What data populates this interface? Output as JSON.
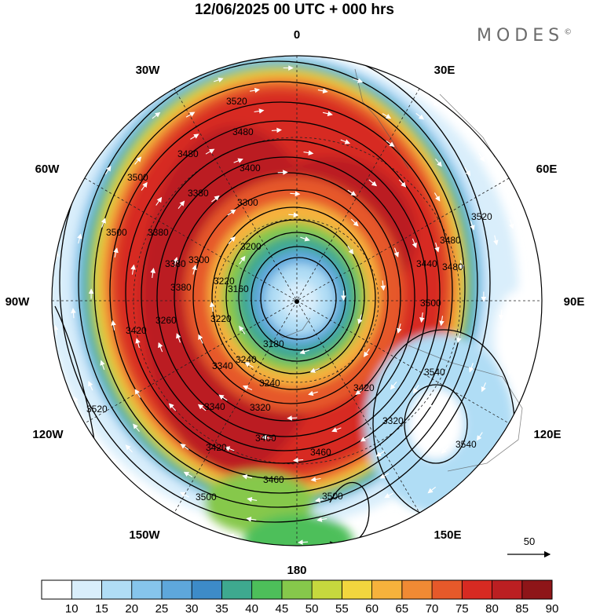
{
  "title": "12/06/2025  00 UTC  + 000 hrs",
  "brand": "MODES",
  "brand_mark": "©",
  "longitude_labels": {
    "0": "0",
    "30E": "30E",
    "60E": "60E",
    "90E": "90E",
    "120E": "120E",
    "150E": "150E",
    "180": "180",
    "150W": "150W",
    "120W": "120W",
    "90W": "90W",
    "60W": "60W",
    "30W": "30W"
  },
  "contour_labels": [
    "3520",
    "3480",
    "3500",
    "3480",
    "3400",
    "3380",
    "3300",
    "3200",
    "3160",
    "3180",
    "3220",
    "3260",
    "3240",
    "3300",
    "3320",
    "3340",
    "3380",
    "3420",
    "3400",
    "3460",
    "3500",
    "3480",
    "3500",
    "3540",
    "3540",
    "3420",
    "3380",
    "3500",
    "3440",
    "3420",
    "3460",
    "3520",
    "3520",
    "3480",
    "3380",
    "3240",
    "3220",
    "3320",
    "3340",
    "3500"
  ],
  "reference_vector": {
    "label": "50"
  },
  "colorbar": {
    "ticks": [
      "10",
      "15",
      "20",
      "25",
      "30",
      "35",
      "40",
      "45",
      "50",
      "55",
      "60",
      "65",
      "70",
      "75",
      "80",
      "85",
      "90"
    ],
    "colors": [
      "#ffffff",
      "#d9eefb",
      "#b0ddf5",
      "#86c5ec",
      "#5ea7db",
      "#3d8bc8",
      "#3ea98f",
      "#4dbf5a",
      "#86c84b",
      "#c6d83e",
      "#f2d63e",
      "#f6b23c",
      "#f08a34",
      "#e6592a",
      "#d72a22",
      "#bb1f22",
      "#8e1518"
    ]
  },
  "chart_data": {
    "type": "polar-stereographic map",
    "projection": "southern hemisphere polar stereographic",
    "fields": [
      "wind speed (shaded)",
      "geopotential height contours",
      "wind vectors"
    ],
    "contour_values": [
      3160,
      3180,
      3200,
      3220,
      3240,
      3260,
      3300,
      3320,
      3340,
      3380,
      3400,
      3420,
      3440,
      3460,
      3480,
      3500,
      3520,
      3540
    ],
    "shade_levels": [
      10,
      15,
      20,
      25,
      30,
      35,
      40,
      45,
      50,
      55,
      60,
      65,
      70,
      75,
      80,
      85,
      90
    ],
    "grid": true
  }
}
